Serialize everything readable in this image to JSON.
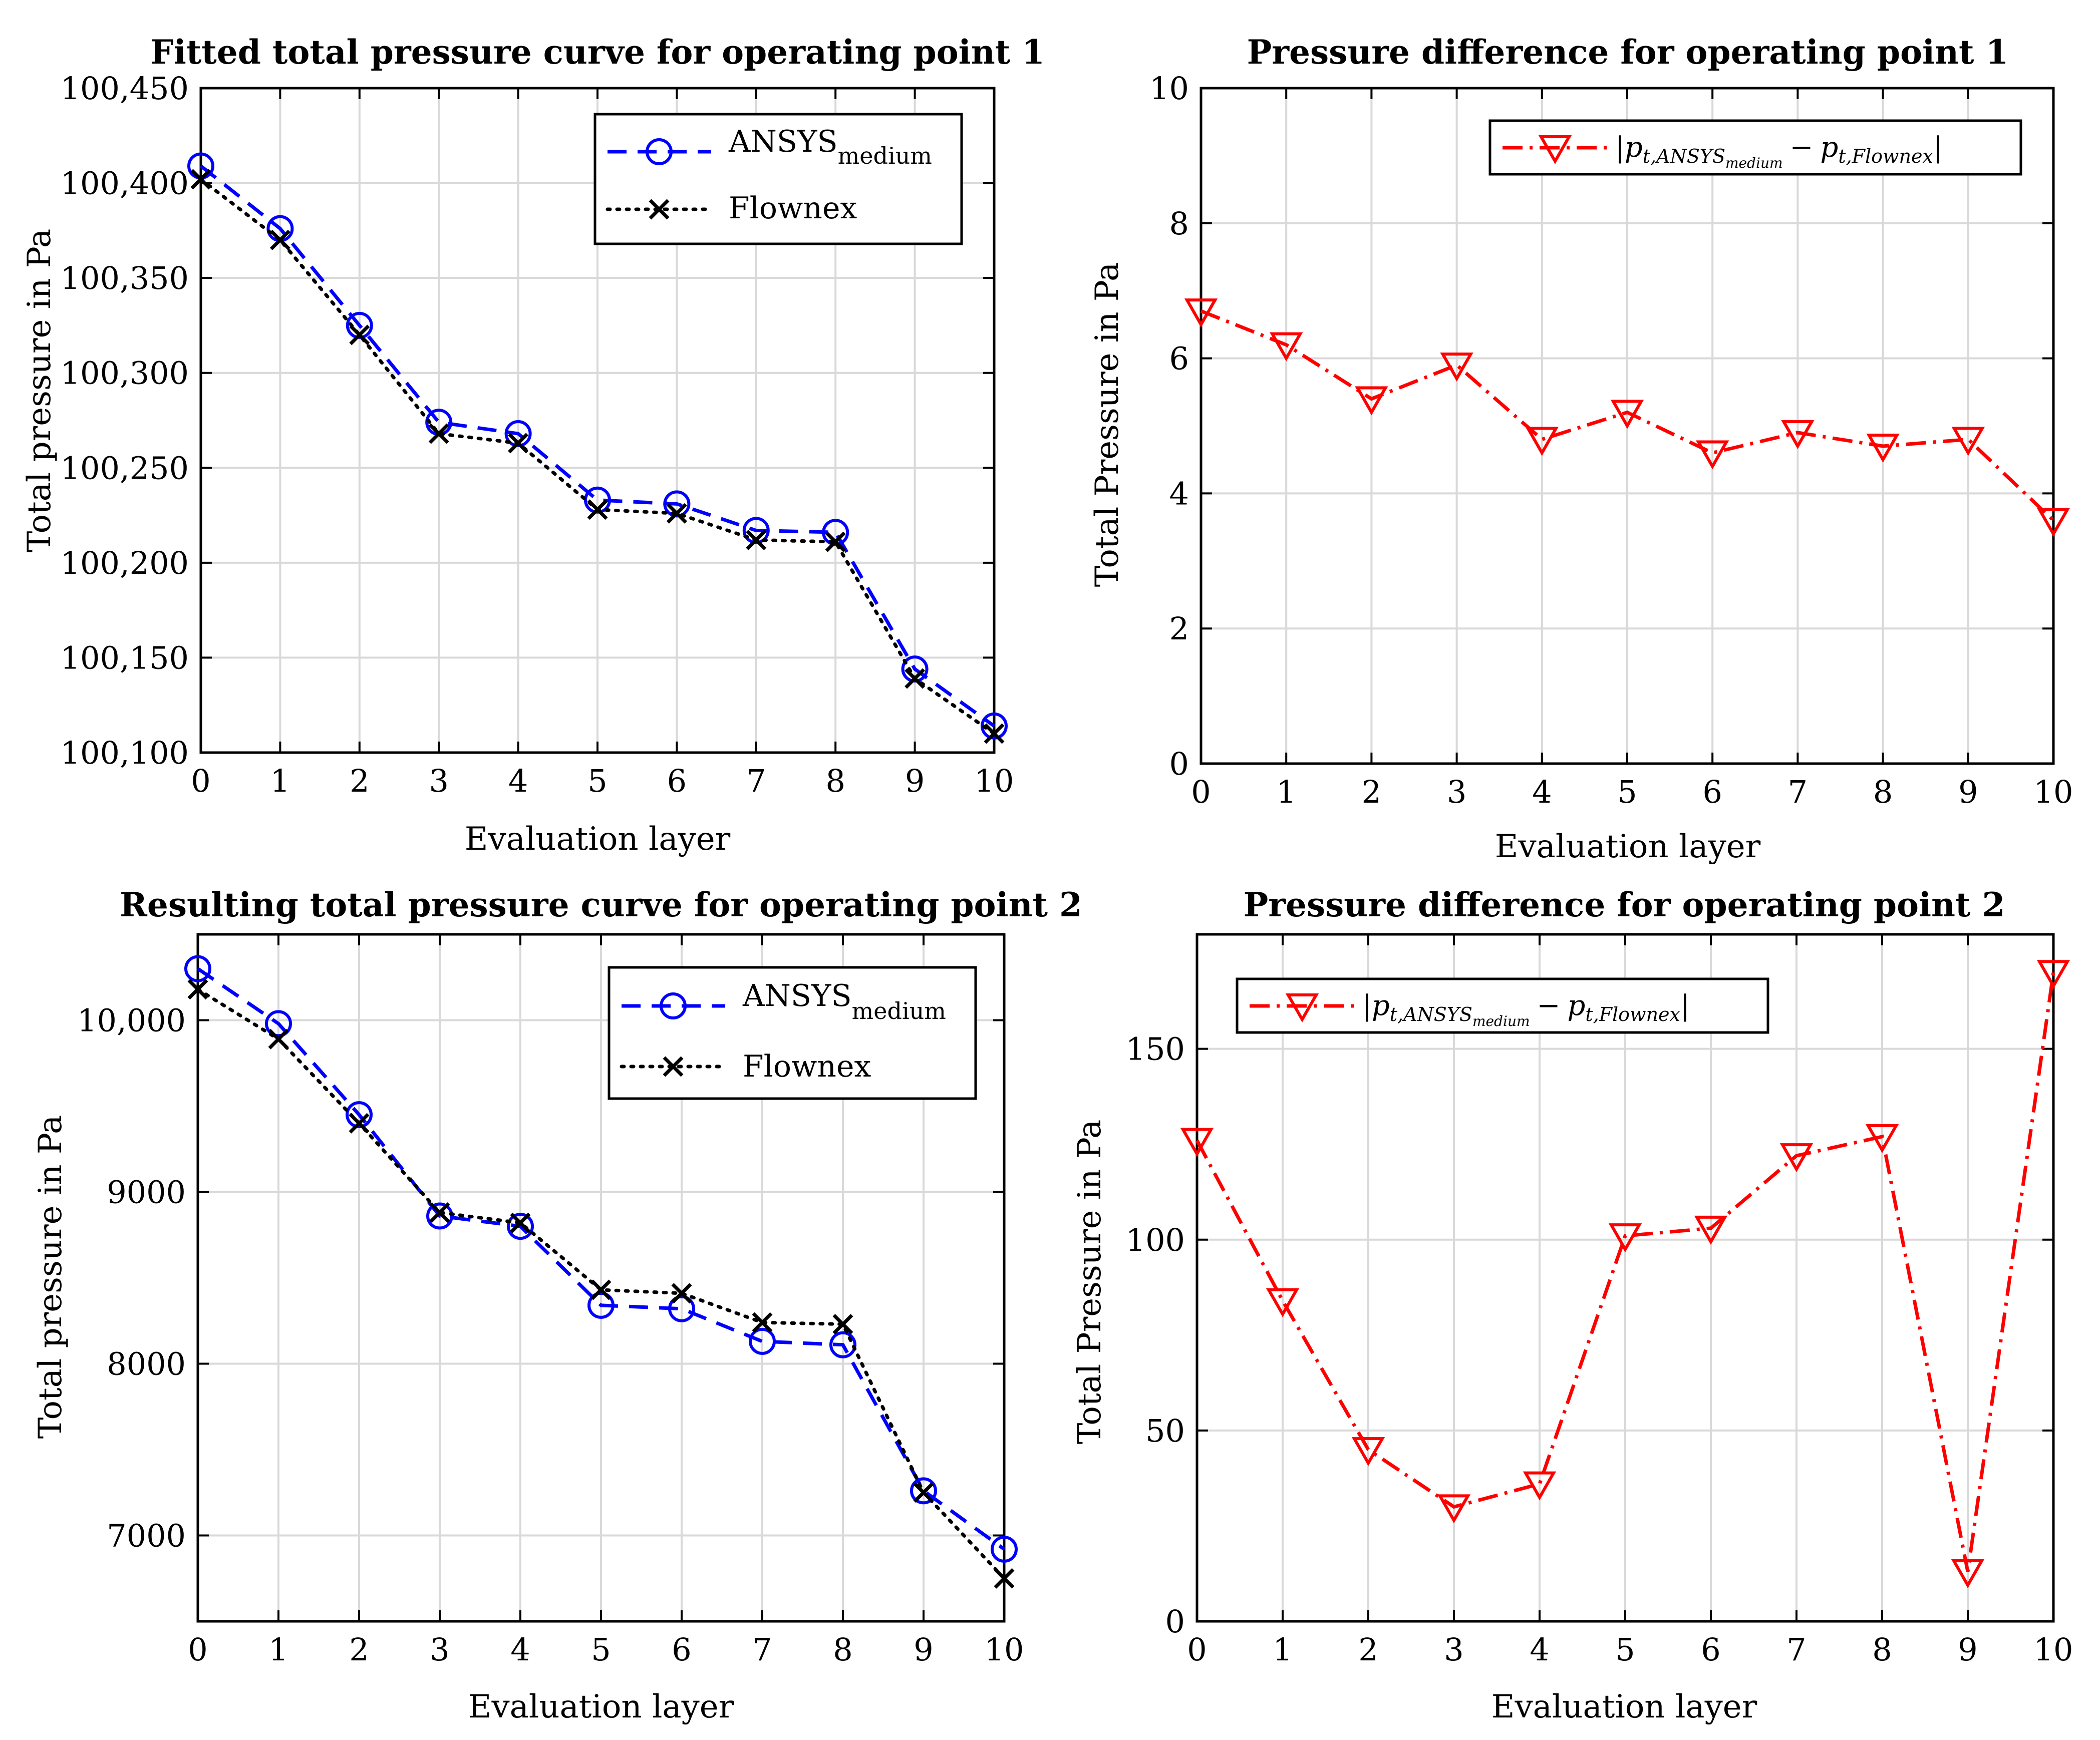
{
  "chart_data": [
    {
      "type": "line",
      "title": "Fitted total pressure curve for operating point 1",
      "xlabel": "Evaluation layer",
      "ylabel": "Total pressure in Pa",
      "x": [
        0,
        1,
        2,
        3,
        4,
        5,
        6,
        7,
        8,
        9,
        10
      ],
      "xlim": [
        0,
        10
      ],
      "ylim": [
        100100,
        100450
      ],
      "yticks": [
        100100,
        100150,
        100200,
        100250,
        100300,
        100350,
        100400,
        100450
      ],
      "ytick_labels": [
        "100,100",
        "100,150",
        "100,200",
        "100,250",
        "100,300",
        "100,350",
        "100,400",
        "100,450"
      ],
      "grid": true,
      "legend": "top-right",
      "series": [
        {
          "name": "ANSYS",
          "name_sub": "medium",
          "color": "#0000ff",
          "style": "dashed",
          "marker": "circle",
          "values": [
            100409,
            100376,
            100325,
            100274,
            100268,
            100233,
            100231,
            100217,
            100216,
            100144,
            100114
          ]
        },
        {
          "name": "Flownex",
          "color": "#000000",
          "style": "dotted",
          "marker": "x",
          "values": [
            100402,
            100370,
            100320,
            100268,
            100263,
            100228,
            100226,
            100212,
            100211,
            100139,
            100110
          ]
        }
      ]
    },
    {
      "type": "line",
      "title": "Pressure difference for operating point 1",
      "xlabel": "Evaluation layer",
      "ylabel": "Total Pressure in Pa",
      "x": [
        0,
        1,
        2,
        3,
        4,
        5,
        6,
        7,
        8,
        9,
        10
      ],
      "xlim": [
        0,
        10
      ],
      "ylim": [
        0,
        10
      ],
      "yticks": [
        0,
        2,
        4,
        6,
        8,
        10
      ],
      "ytick_labels": [
        "0",
        "2",
        "4",
        "6",
        "8",
        "10"
      ],
      "grid": true,
      "legend": "top-right",
      "series": [
        {
          "name": "|p_{t,ANSYS_medium} − p_{t,Flownex}|",
          "color": "#ff0000",
          "style": "dashdot",
          "marker": "triangle-down",
          "values": [
            6.7,
            6.2,
            5.4,
            5.9,
            4.8,
            5.2,
            4.6,
            4.9,
            4.7,
            4.8,
            3.6
          ]
        }
      ]
    },
    {
      "type": "line",
      "title": "Resulting total pressure curve for operating point 2",
      "xlabel": "Evaluation layer",
      "ylabel": "Total pressure in Pa",
      "x": [
        0,
        1,
        2,
        3,
        4,
        5,
        6,
        7,
        8,
        9,
        10
      ],
      "xlim": [
        0,
        10
      ],
      "ylim": [
        6500,
        10500
      ],
      "yticks": [
        7000,
        8000,
        9000,
        10000
      ],
      "ytick_labels": [
        "7000",
        "8000",
        "9000",
        "10,000"
      ],
      "grid": true,
      "legend": "top-right",
      "series": [
        {
          "name": "ANSYS",
          "name_sub": "medium",
          "color": "#0000ff",
          "style": "dashed",
          "marker": "circle",
          "values": [
            10300,
            9980,
            9450,
            8860,
            8800,
            8340,
            8320,
            8130,
            8110,
            7260,
            6920
          ]
        },
        {
          "name": "Flownex",
          "color": "#000000",
          "style": "dotted",
          "marker": "x",
          "values": [
            10180,
            9890,
            9400,
            8880,
            8820,
            8430,
            8410,
            8240,
            8230,
            7250,
            6750
          ]
        }
      ]
    },
    {
      "type": "line",
      "title": "Pressure difference for operating point 2",
      "xlabel": "Evaluation layer",
      "ylabel": "Total Pressure in Pa",
      "x": [
        0,
        1,
        2,
        3,
        4,
        5,
        6,
        7,
        8,
        9,
        10
      ],
      "xlim": [
        0,
        10
      ],
      "ylim": [
        0,
        180
      ],
      "yticks": [
        0,
        50,
        100,
        150
      ],
      "ytick_labels": [
        "0",
        "50",
        "100",
        "150"
      ],
      "grid": true,
      "legend": "top-left",
      "series": [
        {
          "name": "|p_{t,ANSYS_medium} − p_{t,Flownex}|",
          "color": "#ff0000",
          "style": "dashdot",
          "marker": "triangle-down",
          "values": [
            126,
            84,
            45,
            30,
            36,
            101,
            103,
            122,
            127,
            13,
            170
          ]
        }
      ]
    }
  ],
  "legend_labels": {
    "ansys_main": "ANSYS",
    "ansys_sub": "medium",
    "flownex": "Flownex",
    "diff_bar_open": "|",
    "diff_p1": "p",
    "diff_sub1": "t,ANSYS",
    "diff_subsub": "medium",
    "diff_minus": "−",
    "diff_p2": "p",
    "diff_sub2": "t,Flownex",
    "diff_bar_close": "|"
  }
}
